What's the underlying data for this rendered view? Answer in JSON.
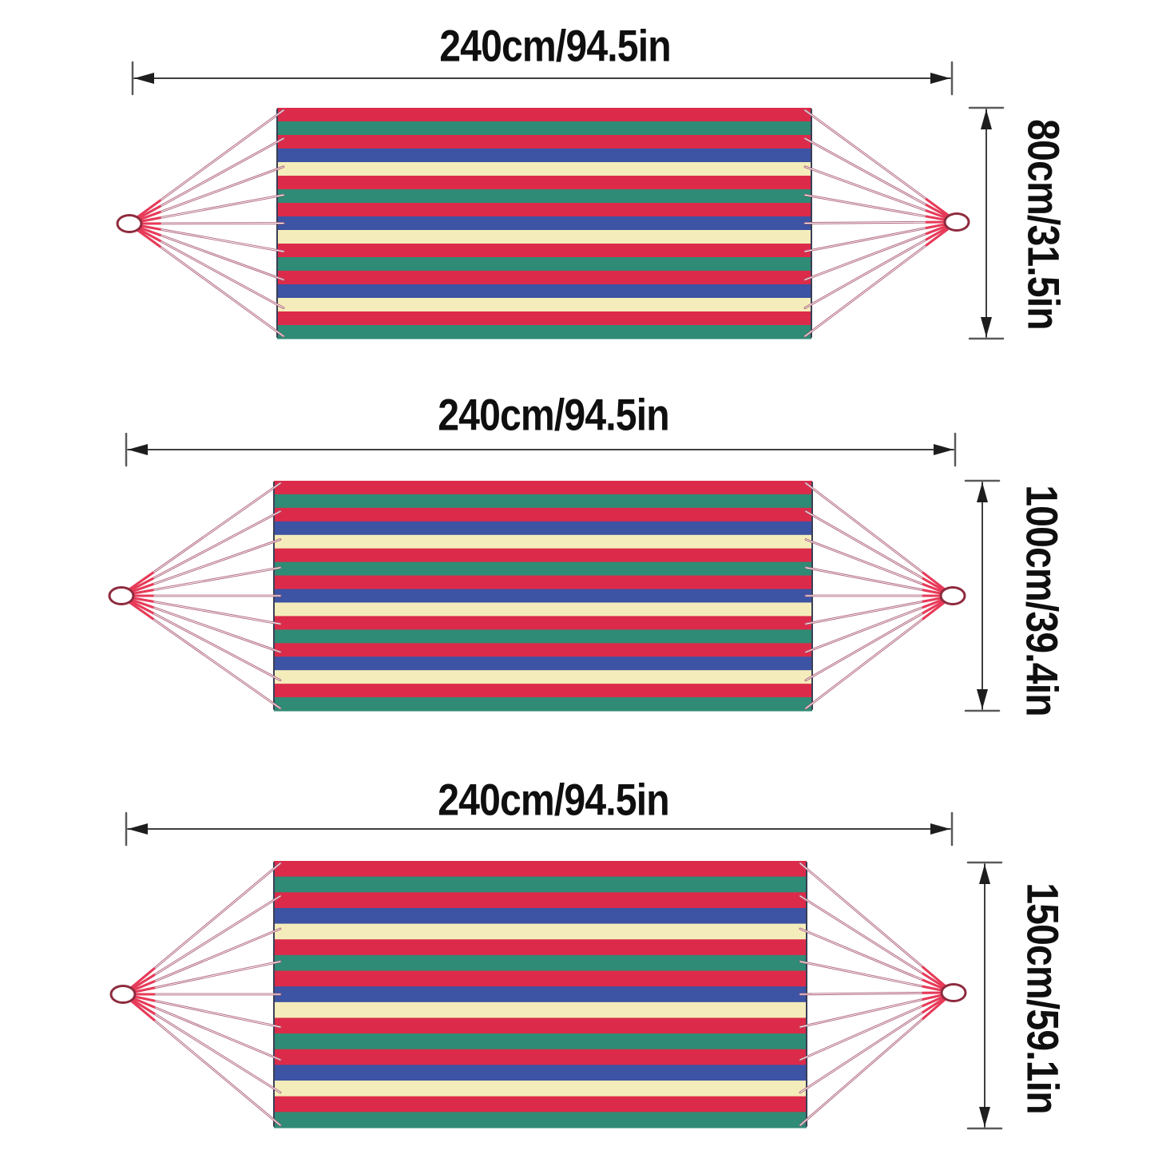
{
  "page": {
    "background_color": "#ffffff"
  },
  "palette": {
    "stripe_red": "#dc2b4a",
    "stripe_green": "#2f8b75",
    "stripe_blue": "#3d53a3",
    "stripe_cream": "#f4edbb",
    "fabric_edge": "#3a3f55",
    "rope": "#b0677c",
    "rope_highlight": "#e83a58",
    "ring_fill": "#ffffff",
    "ring_outline": "#8e2b3e",
    "dimension_line": "#3f3f3f",
    "dimension_tick": "#5a5a5a",
    "dimension_arrow": "#1e1e1e",
    "text_color": "#0f0f0f"
  },
  "stripe_pattern": [
    "stripe_red",
    "stripe_green",
    "stripe_red",
    "stripe_blue",
    "stripe_cream"
  ],
  "stripes_per_hammock": 17,
  "ropes_per_side": 9,
  "hammocks": [
    {
      "width_label": "240cm/94.5in",
      "height_label": "80cm/31.5in"
    },
    {
      "width_label": "240cm/94.5in",
      "height_label": "100cm/39.4in"
    },
    {
      "width_label": "240cm/94.5in",
      "height_label": "150cm/59.1in"
    }
  ]
}
